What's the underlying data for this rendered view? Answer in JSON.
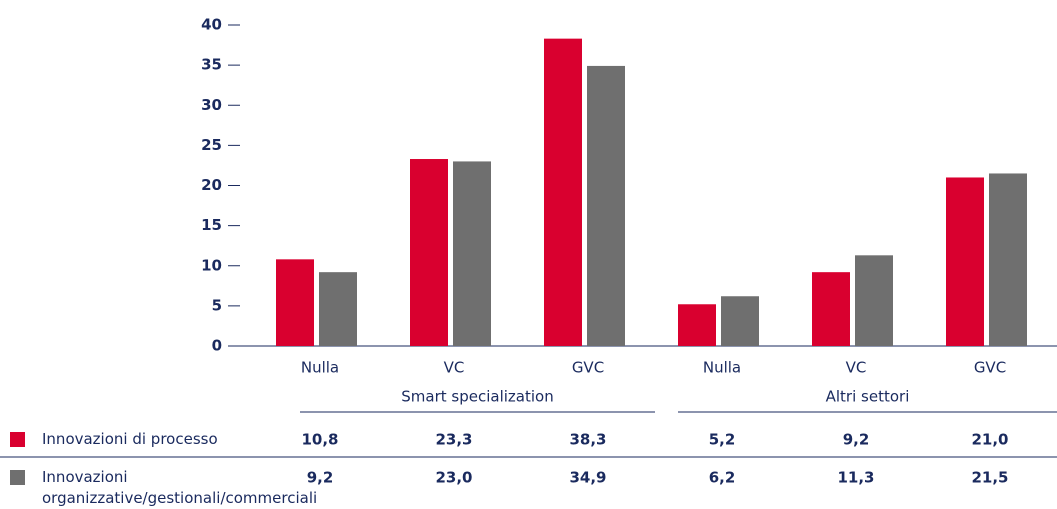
{
  "chart_data": {
    "type": "bar",
    "categories": [
      "Nulla",
      "VC",
      "GVC",
      "Nulla",
      "VC",
      "GVC"
    ],
    "groups": [
      "Smart specialization",
      "Altri settori"
    ],
    "series": [
      {
        "name": "Innovazioni di processo",
        "color": "#d9002f",
        "values": [
          10.8,
          23.3,
          38.3,
          5.2,
          9.2,
          21.0
        ],
        "value_labels": [
          "10,8",
          "23,3",
          "38,3",
          "5,2",
          "9,2",
          "21,0"
        ]
      },
      {
        "name": "Innovazioni organizzative/gestionali/commerciali",
        "color": "#6f6f6f",
        "values": [
          9.2,
          23.0,
          34.9,
          6.2,
          11.3,
          21.5
        ],
        "value_labels": [
          "9,2",
          "23,0",
          "34,9",
          "6,2",
          "11,3",
          "21,5"
        ]
      }
    ],
    "ylim": [
      0,
      40
    ],
    "yticks": [
      0,
      5,
      10,
      15,
      20,
      25,
      30,
      35,
      40
    ]
  }
}
